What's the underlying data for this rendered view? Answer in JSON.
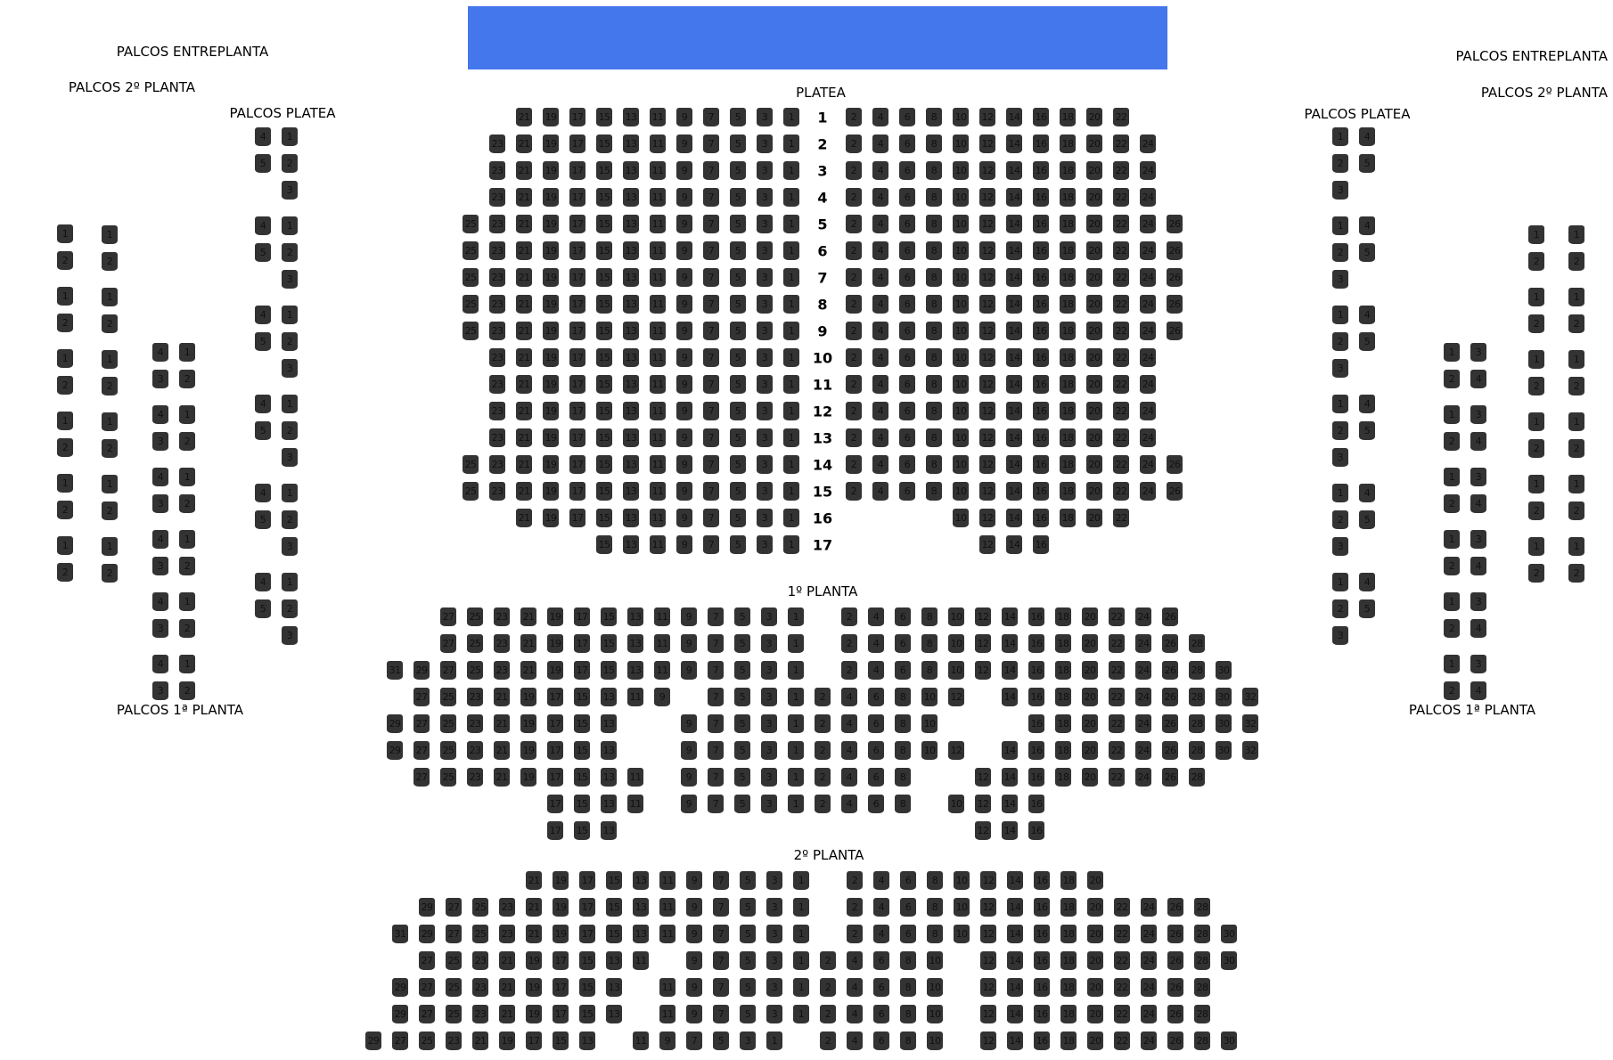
{
  "stage": {
    "color": "#4476ec"
  },
  "labels": {
    "palcos_entreplanta_left": "PALCOS ENTREPLANTA",
    "palcos_2_planta_left": "PALCOS 2º PLANTA",
    "palcos_platea_left": "PALCOS PLATEA",
    "palcos_1_planta_left": "PALCOS 1ª PLANTA",
    "palcos_entreplanta_right": "PALCOS ENTREPLANTA",
    "palcos_2_planta_right": "PALCOS 2º PLANTA",
    "palcos_platea_right": "PALCOS PLATEA",
    "palcos_1_planta_right": "PALCOS 1ª PLANTA"
  },
  "seat_color": "#333333",
  "platea": {
    "title": "PLATEA",
    "rows": [
      {
        "row": "1",
        "left": [
          21,
          19,
          17,
          15,
          13,
          11,
          9,
          7,
          5,
          3,
          1
        ],
        "right": [
          2,
          4,
          6,
          8,
          10,
          12,
          14,
          16,
          18,
          20,
          22
        ]
      },
      {
        "row": "2",
        "left": [
          23,
          21,
          19,
          17,
          15,
          13,
          11,
          9,
          7,
          5,
          3,
          1
        ],
        "right": [
          2,
          4,
          6,
          8,
          10,
          12,
          14,
          16,
          18,
          20,
          22,
          24
        ]
      },
      {
        "row": "3",
        "left": [
          23,
          21,
          19,
          17,
          15,
          13,
          11,
          9,
          7,
          5,
          3,
          1
        ],
        "right": [
          2,
          4,
          6,
          8,
          10,
          12,
          14,
          16,
          18,
          20,
          22,
          24
        ]
      },
      {
        "row": "4",
        "left": [
          23,
          21,
          19,
          17,
          15,
          13,
          11,
          9,
          7,
          5,
          3,
          1
        ],
        "right": [
          2,
          4,
          6,
          8,
          10,
          12,
          14,
          16,
          18,
          20,
          22,
          24
        ]
      },
      {
        "row": "5",
        "left": [
          25,
          23,
          21,
          19,
          17,
          15,
          13,
          11,
          9,
          7,
          5,
          3,
          1
        ],
        "right": [
          2,
          4,
          6,
          8,
          10,
          12,
          14,
          16,
          18,
          20,
          22,
          24,
          26
        ]
      },
      {
        "row": "6",
        "left": [
          25,
          23,
          21,
          19,
          17,
          15,
          13,
          11,
          9,
          7,
          5,
          3,
          1
        ],
        "right": [
          2,
          4,
          6,
          8,
          10,
          12,
          14,
          16,
          18,
          20,
          22,
          24,
          26
        ]
      },
      {
        "row": "7",
        "left": [
          25,
          23,
          21,
          19,
          17,
          15,
          13,
          11,
          9,
          7,
          5,
          3,
          1
        ],
        "right": [
          2,
          4,
          6,
          8,
          10,
          12,
          14,
          16,
          18,
          20,
          22,
          24,
          26
        ]
      },
      {
        "row": "8",
        "left": [
          25,
          23,
          21,
          19,
          17,
          15,
          13,
          11,
          9,
          7,
          5,
          3,
          1
        ],
        "right": [
          2,
          4,
          6,
          8,
          10,
          12,
          14,
          16,
          18,
          20,
          22,
          24,
          26
        ]
      },
      {
        "row": "9",
        "left": [
          25,
          23,
          21,
          19,
          17,
          15,
          13,
          11,
          9,
          7,
          5,
          3,
          1
        ],
        "right": [
          2,
          4,
          6,
          8,
          10,
          12,
          14,
          16,
          18,
          20,
          22,
          24,
          26
        ]
      },
      {
        "row": "10",
        "left": [
          23,
          21,
          19,
          17,
          15,
          13,
          11,
          9,
          7,
          5,
          3,
          1
        ],
        "right": [
          2,
          4,
          6,
          8,
          10,
          12,
          14,
          16,
          18,
          20,
          22,
          24
        ]
      },
      {
        "row": "11",
        "left": [
          23,
          21,
          19,
          17,
          15,
          13,
          11,
          9,
          7,
          5,
          3,
          1
        ],
        "right": [
          2,
          4,
          6,
          8,
          10,
          12,
          14,
          16,
          18,
          20,
          22,
          24
        ]
      },
      {
        "row": "12",
        "left": [
          23,
          21,
          19,
          17,
          15,
          13,
          11,
          9,
          7,
          5,
          3,
          1
        ],
        "right": [
          2,
          4,
          6,
          8,
          10,
          12,
          14,
          16,
          18,
          20,
          22,
          24
        ]
      },
      {
        "row": "13",
        "left": [
          23,
          21,
          19,
          17,
          15,
          13,
          11,
          9,
          7,
          5,
          3,
          1
        ],
        "right": [
          2,
          4,
          6,
          8,
          10,
          12,
          14,
          16,
          18,
          20,
          22,
          24
        ]
      },
      {
        "row": "14",
        "left": [
          25,
          23,
          21,
          19,
          17,
          15,
          13,
          11,
          9,
          7,
          5,
          3,
          1
        ],
        "right": [
          2,
          4,
          6,
          8,
          10,
          12,
          14,
          16,
          18,
          20,
          22,
          24,
          26
        ]
      },
      {
        "row": "15",
        "left": [
          25,
          23,
          21,
          19,
          17,
          15,
          13,
          11,
          9,
          7,
          5,
          3,
          1
        ],
        "right": [
          2,
          4,
          6,
          8,
          10,
          12,
          14,
          16,
          18,
          20,
          22,
          24,
          26
        ]
      },
      {
        "row": "16",
        "left": [
          21,
          19,
          17,
          15,
          13,
          11,
          9,
          7,
          5,
          3,
          1
        ],
        "right": [
          10,
          12,
          14,
          16,
          18,
          20,
          22
        ]
      },
      {
        "row": "17",
        "left": [
          15,
          13,
          11,
          9,
          7,
          5,
          3,
          1
        ],
        "right": [
          12,
          14,
          16
        ]
      }
    ]
  },
  "primera_planta": {
    "title": "1º PLANTA",
    "rows": [
      [
        null,
        null,
        27,
        25,
        23,
        21,
        19,
        17,
        15,
        13,
        11,
        9,
        7,
        5,
        3,
        1,
        null,
        2,
        4,
        6,
        8,
        10,
        12,
        14,
        16,
        18,
        20,
        22,
        24,
        26,
        null,
        null,
        null
      ],
      [
        null,
        null,
        27,
        25,
        23,
        21,
        19,
        17,
        15,
        13,
        11,
        9,
        7,
        5,
        3,
        1,
        null,
        2,
        4,
        6,
        8,
        10,
        12,
        14,
        16,
        18,
        20,
        22,
        24,
        26,
        28,
        null,
        null
      ],
      [
        31,
        29,
        27,
        25,
        23,
        21,
        19,
        17,
        15,
        13,
        11,
        9,
        7,
        5,
        3,
        1,
        null,
        2,
        4,
        6,
        8,
        10,
        12,
        14,
        16,
        18,
        20,
        22,
        24,
        26,
        28,
        30,
        null
      ],
      [
        null,
        27,
        25,
        23,
        21,
        19,
        17,
        15,
        13,
        11,
        9,
        null,
        7,
        5,
        3,
        1,
        2,
        4,
        6,
        8,
        10,
        12,
        null,
        14,
        16,
        18,
        20,
        22,
        24,
        26,
        28,
        30,
        32
      ],
      [
        29,
        27,
        25,
        23,
        21,
        19,
        17,
        15,
        13,
        null,
        null,
        9,
        7,
        5,
        3,
        1,
        2,
        4,
        6,
        8,
        10,
        null,
        null,
        null,
        16,
        18,
        20,
        22,
        24,
        26,
        28,
        30,
        32
      ],
      [
        29,
        27,
        25,
        23,
        21,
        19,
        17,
        15,
        13,
        null,
        null,
        9,
        7,
        5,
        3,
        1,
        2,
        4,
        6,
        8,
        10,
        12,
        null,
        14,
        16,
        18,
        20,
        22,
        24,
        26,
        28,
        30,
        32
      ],
      [
        null,
        27,
        25,
        23,
        21,
        19,
        17,
        15,
        13,
        11,
        null,
        9,
        7,
        5,
        3,
        1,
        2,
        4,
        6,
        8,
        null,
        null,
        12,
        14,
        16,
        18,
        20,
        22,
        24,
        26,
        28,
        null,
        null
      ],
      [
        null,
        null,
        null,
        null,
        null,
        null,
        17,
        15,
        13,
        11,
        null,
        9,
        7,
        5,
        3,
        1,
        2,
        4,
        6,
        8,
        null,
        10,
        12,
        14,
        16,
        null,
        null,
        null,
        null,
        null,
        null,
        null,
        null
      ],
      [
        null,
        null,
        null,
        null,
        null,
        null,
        17,
        15,
        13,
        null,
        null,
        null,
        null,
        null,
        null,
        null,
        null,
        null,
        null,
        null,
        null,
        null,
        12,
        14,
        16,
        null,
        null,
        null,
        null,
        null,
        null,
        null,
        null
      ]
    ]
  },
  "segunda_planta": {
    "title": "2º PLANTA",
    "rows": [
      [
        null,
        null,
        null,
        null,
        null,
        null,
        21,
        19,
        17,
        15,
        13,
        11,
        9,
        7,
        5,
        3,
        1,
        null,
        2,
        4,
        6,
        8,
        10,
        12,
        14,
        16,
        18,
        20,
        null,
        null,
        null,
        null,
        null
      ],
      [
        null,
        null,
        29,
        27,
        25,
        23,
        21,
        19,
        17,
        15,
        13,
        11,
        9,
        7,
        5,
        3,
        1,
        null,
        2,
        4,
        6,
        8,
        10,
        12,
        14,
        16,
        18,
        20,
        22,
        24,
        26,
        28,
        null
      ],
      [
        null,
        31,
        29,
        27,
        25,
        23,
        21,
        19,
        17,
        15,
        13,
        11,
        9,
        7,
        5,
        3,
        1,
        null,
        2,
        4,
        6,
        8,
        10,
        12,
        14,
        16,
        18,
        20,
        22,
        24,
        26,
        28,
        30
      ],
      [
        null,
        null,
        27,
        25,
        23,
        21,
        19,
        17,
        15,
        13,
        11,
        null,
        9,
        7,
        5,
        3,
        1,
        2,
        4,
        6,
        8,
        10,
        null,
        12,
        14,
        16,
        18,
        20,
        22,
        24,
        26,
        28,
        30
      ],
      [
        null,
        29,
        27,
        25,
        23,
        21,
        19,
        17,
        15,
        13,
        null,
        11,
        9,
        7,
        5,
        3,
        1,
        2,
        4,
        6,
        8,
        10,
        null,
        12,
        14,
        16,
        18,
        20,
        22,
        24,
        26,
        28,
        null
      ],
      [
        null,
        29,
        27,
        25,
        23,
        21,
        19,
        17,
        15,
        13,
        null,
        11,
        9,
        7,
        5,
        3,
        1,
        2,
        4,
        6,
        8,
        10,
        null,
        12,
        14,
        16,
        18,
        20,
        22,
        24,
        26,
        28,
        null
      ],
      [
        29,
        27,
        25,
        23,
        21,
        19,
        17,
        15,
        13,
        null,
        11,
        9,
        7,
        5,
        3,
        1,
        null,
        2,
        4,
        6,
        8,
        10,
        null,
        12,
        14,
        16,
        18,
        20,
        22,
        24,
        26,
        28,
        30
      ]
    ]
  },
  "palcos": {
    "platea_left": {
      "boxes": 6,
      "seats": [
        [
          4,
          1
        ],
        [
          5,
          2
        ],
        [
          null,
          3
        ]
      ]
    },
    "platea_right": {
      "boxes": 6,
      "seats": [
        [
          1,
          4
        ],
        [
          2,
          5
        ],
        [
          3,
          null
        ]
      ]
    },
    "primera_left": {
      "boxes": 6,
      "seats": [
        [
          4,
          1
        ],
        [
          3,
          2
        ]
      ]
    },
    "primera_right": {
      "boxes": 6,
      "seats": [
        [
          1,
          3
        ],
        [
          2,
          4
        ]
      ]
    },
    "pairs_left_a": {
      "boxes": 6,
      "seats": [
        [
          1
        ],
        [
          2
        ]
      ]
    },
    "pairs_left_b": {
      "boxes": 6,
      "seats": [
        [
          1
        ],
        [
          2
        ]
      ]
    },
    "pairs_right_a": {
      "boxes": 6,
      "seats": [
        [
          1
        ],
        [
          2
        ]
      ]
    },
    "pairs_right_b": {
      "boxes": 6,
      "seats": [
        [
          1
        ],
        [
          2
        ]
      ]
    }
  }
}
